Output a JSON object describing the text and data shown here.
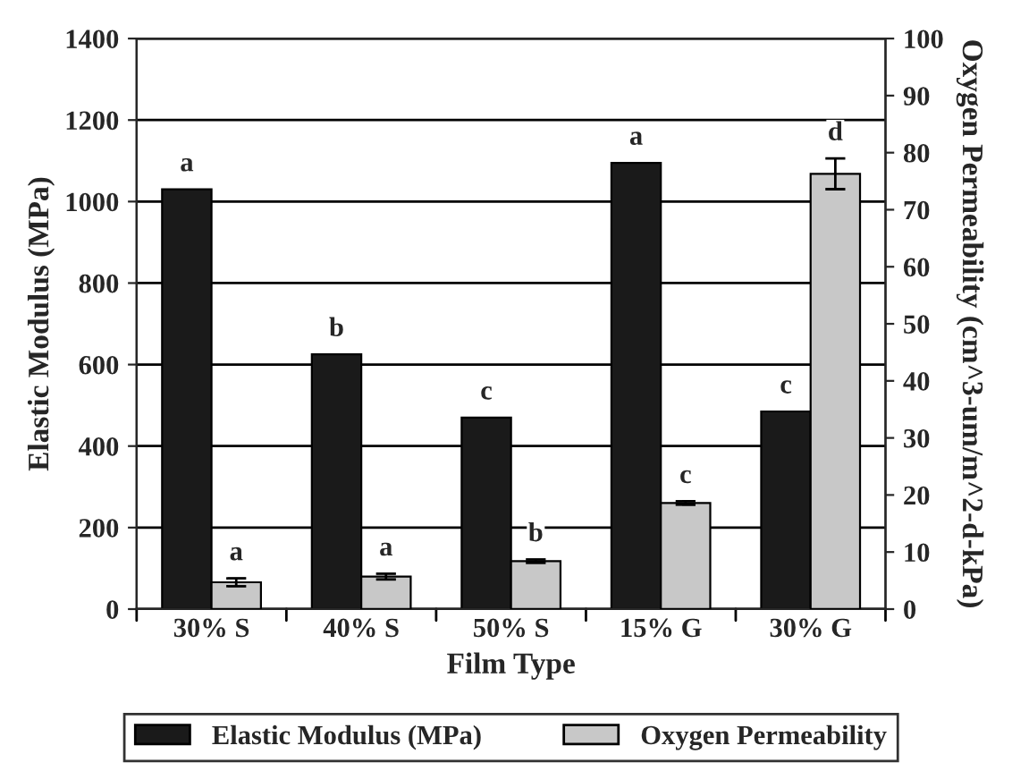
{
  "chart_data": {
    "type": "bar",
    "xlabel": "Film Type",
    "ylabel": "Elastic Modulus (MPa)",
    "y2label": "Oxygen Permeability (cm^3-um/m^2-d-kPa)",
    "categories": [
      "30% S",
      "40% S",
      "50% S",
      "15% G",
      "30% G"
    ],
    "series": [
      {
        "name": "Elastic Modulus (MPa)",
        "color": "#1a1a1a",
        "values": [
          1030,
          625,
          470,
          1095,
          485
        ],
        "value_labels": [
          "a",
          "b",
          "c",
          "a",
          "c"
        ]
      },
      {
        "name": "Oxygen Permeability",
        "color": "#c8c8c8",
        "axis": "y2",
        "values": [
          4.7,
          5.7,
          8.4,
          18.6,
          76.3
        ],
        "errors": [
          0.7,
          0.5,
          0.3,
          0.3,
          2.7
        ],
        "value_labels": [
          "a",
          "a",
          "b",
          "c",
          "d"
        ]
      }
    ],
    "ylim": [
      0,
      1400
    ],
    "yticks": [
      0,
      200,
      400,
      600,
      800,
      1000,
      1200,
      1400
    ],
    "y2lim": [
      0,
      100
    ],
    "y2ticks": [
      0,
      10,
      20,
      30,
      40,
      50,
      60,
      70,
      80,
      90,
      100
    ],
    "grid": "y",
    "legend": "bottom"
  }
}
